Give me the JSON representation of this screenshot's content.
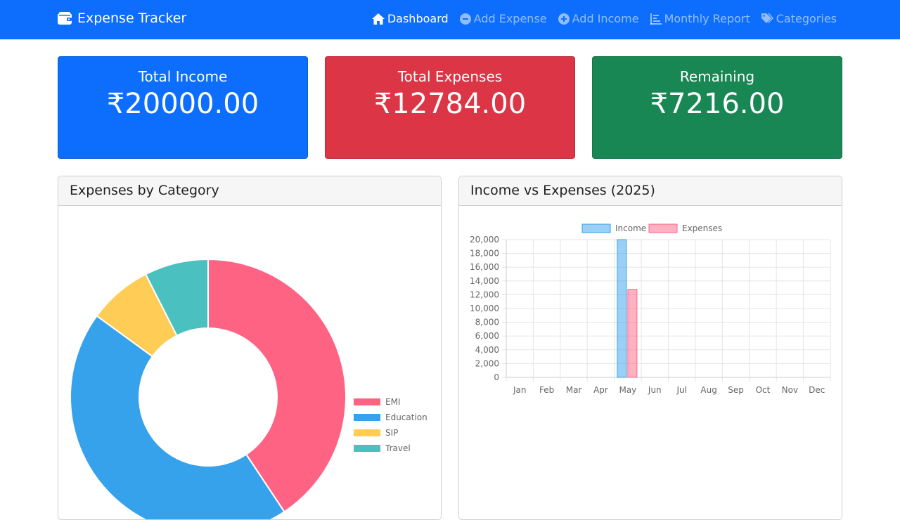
{
  "navbar": {
    "brand": "Expense Tracker",
    "items": [
      {
        "label": "Dashboard",
        "icon": "home-icon"
      },
      {
        "label": "Add Expense",
        "icon": "minus-circle-icon"
      },
      {
        "label": "Add Income",
        "icon": "plus-circle-icon"
      },
      {
        "label": "Monthly Report",
        "icon": "chart-icon"
      },
      {
        "label": "Categories",
        "icon": "tags-icon"
      }
    ]
  },
  "summary": {
    "income": {
      "label": "Total Income",
      "value": "₹20000.00",
      "color": "#0d6efd"
    },
    "expenses": {
      "label": "Total Expenses",
      "value": "₹12784.00",
      "color": "#dc3545"
    },
    "remaining": {
      "label": "Remaining",
      "value": "₹7216.00",
      "color": "#198754"
    }
  },
  "panels": {
    "category": {
      "title": "Expenses by Category"
    },
    "income_vs": {
      "title": "Income vs Expenses (2025)"
    }
  },
  "chart_data": [
    {
      "type": "pie",
      "title": "Expenses by Category",
      "categories": [
        "EMI",
        "Education",
        "SIP",
        "Travel"
      ],
      "values": [
        5200,
        5670,
        957,
        957
      ],
      "colors": [
        "#ff6384",
        "#36a2eb",
        "#ffcd56",
        "#4bc0c0"
      ],
      "legend": "right"
    },
    {
      "type": "bar",
      "title": "Income vs Expenses (2025)",
      "categories": [
        "Jan",
        "Feb",
        "Mar",
        "Apr",
        "May",
        "Jun",
        "Jul",
        "Aug",
        "Sep",
        "Oct",
        "Nov",
        "Dec"
      ],
      "series": [
        {
          "name": "Income",
          "values": [
            0,
            0,
            0,
            0,
            20000,
            0,
            0,
            0,
            0,
            0,
            0,
            0
          ],
          "color": "#36a2eb"
        },
        {
          "name": "Expenses",
          "values": [
            0,
            0,
            0,
            0,
            12784,
            0,
            0,
            0,
            0,
            0,
            0,
            0
          ],
          "color": "#ff6384"
        }
      ],
      "ylim": [
        0,
        20000
      ],
      "yticks": [
        "0",
        "2,000",
        "4,000",
        "6,000",
        "8,000",
        "10,000",
        "12,000",
        "14,000",
        "16,000",
        "18,000",
        "20,000"
      ],
      "legend": "top",
      "grid": true
    }
  ]
}
